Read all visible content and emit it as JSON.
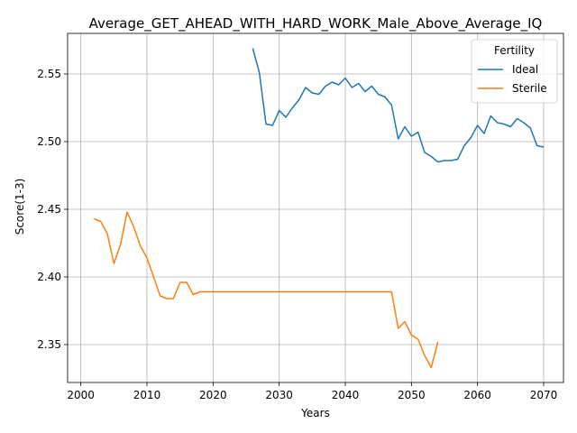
{
  "chart_data": {
    "type": "line",
    "title": "Average_GET_AHEAD_WITH_HARD_WORK_Male_Above_Average_IQ",
    "xlabel": "Years",
    "ylabel": "Score(1-3)",
    "xlim": [
      1998,
      2073
    ],
    "ylim": [
      2.322,
      2.58
    ],
    "xticks": [
      2000,
      2010,
      2020,
      2030,
      2040,
      2050,
      2060,
      2070
    ],
    "yticks": [
      2.35,
      2.4,
      2.45,
      2.5,
      2.55
    ],
    "ytick_labels": [
      "2.35",
      "2.40",
      "2.45",
      "2.50",
      "2.55"
    ],
    "grid": true,
    "legend": {
      "title": "Fertility",
      "position": "top-right"
    },
    "series": [
      {
        "name": "Ideal",
        "color": "#1f77b4",
        "x": [
          2026,
          2027,
          2028,
          2029,
          2030,
          2031,
          2032,
          2033,
          2034,
          2035,
          2036,
          2037,
          2038,
          2039,
          2040,
          2041,
          2042,
          2043,
          2044,
          2045,
          2046,
          2047,
          2048,
          2049,
          2050,
          2051,
          2052,
          2053,
          2054,
          2055,
          2056,
          2057,
          2058,
          2059,
          2060,
          2061,
          2062,
          2063,
          2064,
          2065,
          2066,
          2067,
          2068,
          2069,
          2070
        ],
        "y": [
          2.569,
          2.551,
          2.513,
          2.512,
          2.523,
          2.518,
          2.525,
          2.531,
          2.54,
          2.536,
          2.535,
          2.541,
          2.544,
          2.542,
          2.547,
          2.54,
          2.543,
          2.537,
          2.541,
          2.535,
          2.533,
          2.527,
          2.502,
          2.511,
          2.504,
          2.507,
          2.492,
          2.489,
          2.485,
          2.486,
          2.486,
          2.487,
          2.497,
          2.503,
          2.512,
          2.506,
          2.519,
          2.514,
          2.513,
          2.511,
          2.517,
          2.514,
          2.51,
          2.497,
          2.496
        ]
      },
      {
        "name": "Sterile",
        "color": "#ff7f0e",
        "x": [
          2002,
          2003,
          2004,
          2005,
          2006,
          2007,
          2008,
          2009,
          2010,
          2011,
          2012,
          2013,
          2014,
          2015,
          2016,
          2017,
          2018,
          2019,
          2020,
          2021,
          2022,
          2023,
          2024,
          2025,
          2026,
          2027,
          2028,
          2029,
          2030,
          2031,
          2032,
          2033,
          2034,
          2035,
          2036,
          2037,
          2038,
          2039,
          2040,
          2041,
          2042,
          2043,
          2044,
          2045,
          2046,
          2047,
          2048,
          2049,
          2050,
          2051,
          2052,
          2053,
          2054
        ],
        "y": [
          2.443,
          2.441,
          2.432,
          2.41,
          2.424,
          2.448,
          2.437,
          2.423,
          2.414,
          2.4,
          2.386,
          2.384,
          2.384,
          2.396,
          2.396,
          2.387,
          2.389,
          2.389,
          2.389,
          2.389,
          2.389,
          2.389,
          2.389,
          2.389,
          2.389,
          2.389,
          2.389,
          2.389,
          2.389,
          2.389,
          2.389,
          2.389,
          2.389,
          2.389,
          2.389,
          2.389,
          2.389,
          2.389,
          2.389,
          2.389,
          2.389,
          2.389,
          2.389,
          2.389,
          2.389,
          2.389,
          2.362,
          2.367,
          2.357,
          2.354,
          2.342,
          2.333,
          2.352
        ]
      }
    ]
  }
}
